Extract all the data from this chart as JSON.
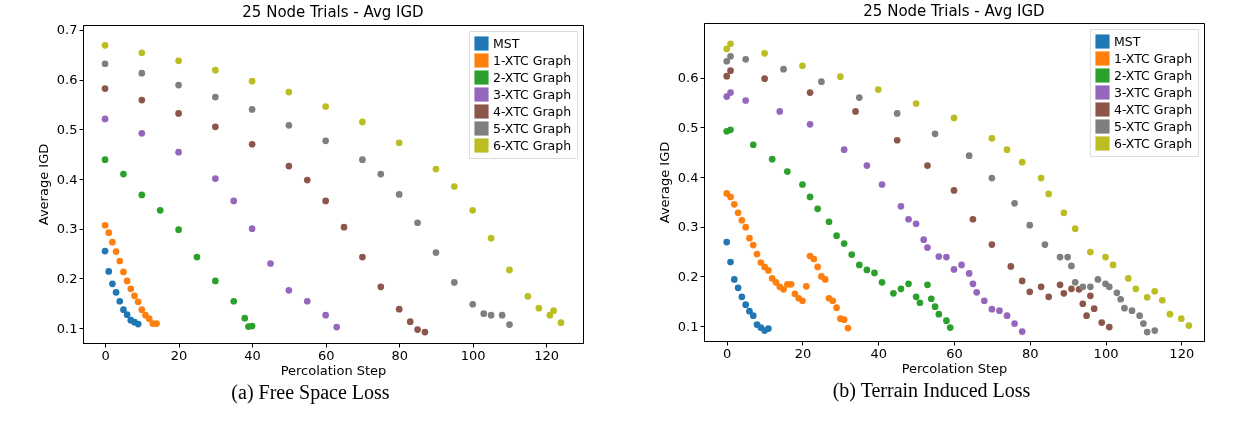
{
  "chart_data": [
    {
      "type": "scatter",
      "title": "25 Node Trials - Avg IGD",
      "xlabel": "Percolation Step",
      "ylabel": "Average IGD",
      "xlim": [
        -6,
        130
      ],
      "ylim": [
        0.07,
        0.71
      ],
      "xticks": [
        0,
        20,
        40,
        60,
        80,
        100,
        120
      ],
      "yticks": [
        0.1,
        0.2,
        0.3,
        0.4,
        0.5,
        0.6,
        0.7
      ],
      "legend": "top right",
      "marker": "circle",
      "annotations": [
        "(a) Free Space Loss"
      ],
      "series": [
        {
          "name": "MST",
          "color": "#1f77b4",
          "x": [
            0,
            1,
            2,
            3,
            4,
            5,
            6,
            7,
            8,
            9
          ],
          "values": [
            0.255,
            0.214,
            0.189,
            0.172,
            0.154,
            0.137,
            0.127,
            0.116,
            0.112,
            0.108
          ]
        },
        {
          "name": "1-XTC Graph",
          "color": "#ff7f0e",
          "x": [
            0,
            1,
            2,
            3,
            4,
            5,
            6,
            7,
            8,
            9,
            10,
            11,
            12,
            13,
            14
          ],
          "values": [
            0.307,
            0.292,
            0.273,
            0.254,
            0.235,
            0.213,
            0.195,
            0.179,
            0.165,
            0.153,
            0.137,
            0.126,
            0.119,
            0.109,
            0.109
          ]
        },
        {
          "name": "2-XTC Graph",
          "color": "#2ca02c",
          "x": [
            0,
            5,
            10,
            15,
            20,
            25,
            30,
            35,
            38,
            39,
            40
          ],
          "values": [
            0.439,
            0.41,
            0.368,
            0.337,
            0.298,
            0.243,
            0.195,
            0.154,
            0.12,
            0.103,
            0.104
          ]
        },
        {
          "name": "3-XTC Graph",
          "color": "#9467bd",
          "x": [
            0,
            10,
            20,
            30,
            35,
            40,
            45,
            50,
            55,
            60,
            63
          ],
          "values": [
            0.521,
            0.492,
            0.454,
            0.401,
            0.356,
            0.3,
            0.23,
            0.176,
            0.154,
            0.126,
            0.102
          ]
        },
        {
          "name": "4-XTC Graph",
          "color": "#8c564b",
          "x": [
            0,
            10,
            20,
            30,
            40,
            50,
            55,
            60,
            65,
            70,
            75,
            80,
            83,
            85,
            87
          ],
          "values": [
            0.582,
            0.559,
            0.532,
            0.505,
            0.47,
            0.426,
            0.398,
            0.356,
            0.303,
            0.243,
            0.183,
            0.138,
            0.113,
            0.097,
            0.092
          ]
        },
        {
          "name": "5-XTC Graph",
          "color": "#7f7f7f",
          "x": [
            0,
            10,
            20,
            30,
            40,
            50,
            60,
            70,
            75,
            80,
            85,
            90,
            95,
            100,
            103,
            105,
            108,
            110
          ],
          "values": [
            0.632,
            0.613,
            0.589,
            0.565,
            0.54,
            0.508,
            0.477,
            0.439,
            0.41,
            0.369,
            0.312,
            0.252,
            0.192,
            0.148,
            0.129,
            0.126,
            0.126,
            0.107
          ]
        },
        {
          "name": "6-XTC Graph",
          "color": "#bcbd22",
          "x": [
            0,
            10,
            20,
            30,
            40,
            50,
            60,
            70,
            80,
            90,
            95,
            100,
            105,
            110,
            115,
            118,
            121,
            122,
            124
          ],
          "values": [
            0.669,
            0.654,
            0.638,
            0.619,
            0.597,
            0.575,
            0.546,
            0.515,
            0.473,
            0.42,
            0.385,
            0.337,
            0.281,
            0.217,
            0.164,
            0.14,
            0.126,
            0.135,
            0.111
          ]
        }
      ]
    },
    {
      "type": "scatter",
      "title": "25 Node Trials - Avg IGD",
      "xlabel": "Percolation Step",
      "ylabel": "Average IGD",
      "xlim": [
        -6,
        126
      ],
      "ylim": [
        0.07,
        0.71
      ],
      "xticks": [
        0,
        20,
        40,
        60,
        80,
        100,
        120
      ],
      "yticks": [
        0.1,
        0.2,
        0.3,
        0.4,
        0.5,
        0.6
      ],
      "legend": "top right",
      "marker": "circle",
      "annotations": [
        "(b) Terrain Induced Loss"
      ],
      "series": [
        {
          "name": "MST",
          "color": "#1f77b4",
          "x": [
            0,
            1,
            2,
            3,
            4,
            5,
            6,
            7,
            8,
            9,
            10,
            11
          ],
          "values": [
            0.269,
            0.229,
            0.194,
            0.177,
            0.159,
            0.143,
            0.13,
            0.121,
            0.103,
            0.097,
            0.091,
            0.095
          ]
        },
        {
          "name": "1-XTC Graph",
          "color": "#ff7f0e",
          "x": [
            0,
            1,
            2,
            3,
            4,
            5,
            6,
            7,
            8,
            9,
            10,
            11,
            12,
            13,
            14,
            15,
            16,
            17,
            18,
            19,
            20,
            21,
            22,
            23,
            24,
            25,
            26,
            27,
            28,
            29,
            30,
            31,
            32
          ],
          "values": [
            0.367,
            0.36,
            0.345,
            0.328,
            0.313,
            0.299,
            0.277,
            0.263,
            0.245,
            0.228,
            0.219,
            0.212,
            0.196,
            0.188,
            0.179,
            0.174,
            0.184,
            0.184,
            0.165,
            0.156,
            0.151,
            0.18,
            0.241,
            0.235,
            0.219,
            0.2,
            0.194,
            0.156,
            0.151,
            0.137,
            0.115,
            0.113,
            0.096
          ]
        },
        {
          "name": "2-XTC Graph",
          "color": "#2ca02c",
          "x": [
            0,
            1,
            7,
            12,
            16,
            20,
            22,
            24,
            27,
            29,
            31,
            33,
            35,
            37,
            39,
            41,
            44,
            46,
            48,
            50,
            51,
            53,
            54,
            55,
            56,
            58,
            59
          ],
          "values": [
            0.492,
            0.495,
            0.465,
            0.436,
            0.411,
            0.385,
            0.36,
            0.336,
            0.31,
            0.282,
            0.266,
            0.244,
            0.223,
            0.213,
            0.207,
            0.188,
            0.166,
            0.175,
            0.185,
            0.159,
            0.147,
            0.183,
            0.155,
            0.139,
            0.124,
            0.111,
            0.097
          ]
        },
        {
          "name": "3-XTC Graph",
          "color": "#9467bd",
          "x": [
            0,
            1,
            5,
            14,
            22,
            31,
            37,
            41,
            46,
            48,
            50,
            52,
            53,
            56,
            58,
            60,
            62,
            64,
            65,
            66,
            68,
            70,
            72,
            74,
            76,
            78
          ],
          "values": [
            0.562,
            0.57,
            0.554,
            0.532,
            0.506,
            0.455,
            0.423,
            0.385,
            0.341,
            0.315,
            0.306,
            0.274,
            0.258,
            0.24,
            0.239,
            0.214,
            0.223,
            0.206,
            0.185,
            0.168,
            0.151,
            0.134,
            0.131,
            0.121,
            0.105,
            0.089
          ]
        },
        {
          "name": "4-XTC Graph",
          "color": "#8c564b",
          "x": [
            0,
            1,
            10,
            22,
            34,
            45,
            53,
            60,
            65,
            70,
            75,
            78,
            80,
            83,
            85,
            88,
            89,
            91,
            93,
            94,
            95,
            96,
            97,
            99,
            101
          ],
          "values": [
            0.603,
            0.614,
            0.598,
            0.57,
            0.532,
            0.474,
            0.423,
            0.373,
            0.315,
            0.264,
            0.22,
            0.191,
            0.169,
            0.179,
            0.159,
            0.183,
            0.166,
            0.175,
            0.174,
            0.145,
            0.121,
            0.161,
            0.135,
            0.107,
            0.098
          ]
        },
        {
          "name": "5-XTC Graph",
          "color": "#7f7f7f",
          "x": [
            0,
            1,
            5,
            15,
            25,
            35,
            45,
            55,
            64,
            70,
            76,
            80,
            84,
            88,
            90,
            91,
            92,
            94,
            96,
            98,
            100,
            101,
            103,
            104,
            105,
            107,
            109,
            110,
            111,
            113
          ],
          "values": [
            0.633,
            0.643,
            0.637,
            0.617,
            0.592,
            0.56,
            0.528,
            0.487,
            0.443,
            0.398,
            0.347,
            0.303,
            0.264,
            0.239,
            0.239,
            0.221,
            0.188,
            0.179,
            0.179,
            0.194,
            0.185,
            0.179,
            0.167,
            0.154,
            0.136,
            0.131,
            0.121,
            0.105,
            0.088,
            0.091
          ]
        },
        {
          "name": "6-XTC Graph",
          "color": "#bcbd22",
          "x": [
            0,
            1,
            10,
            20,
            30,
            40,
            50,
            60,
            70,
            74,
            78,
            83,
            85,
            89,
            92,
            96,
            100,
            102,
            106,
            108,
            111,
            113,
            115,
            117,
            120,
            122
          ],
          "values": [
            0.658,
            0.668,
            0.649,
            0.624,
            0.602,
            0.576,
            0.548,
            0.519,
            0.478,
            0.455,
            0.43,
            0.398,
            0.366,
            0.328,
            0.296,
            0.249,
            0.239,
            0.223,
            0.196,
            0.175,
            0.158,
            0.17,
            0.152,
            0.124,
            0.115,
            0.101
          ]
        }
      ]
    }
  ]
}
